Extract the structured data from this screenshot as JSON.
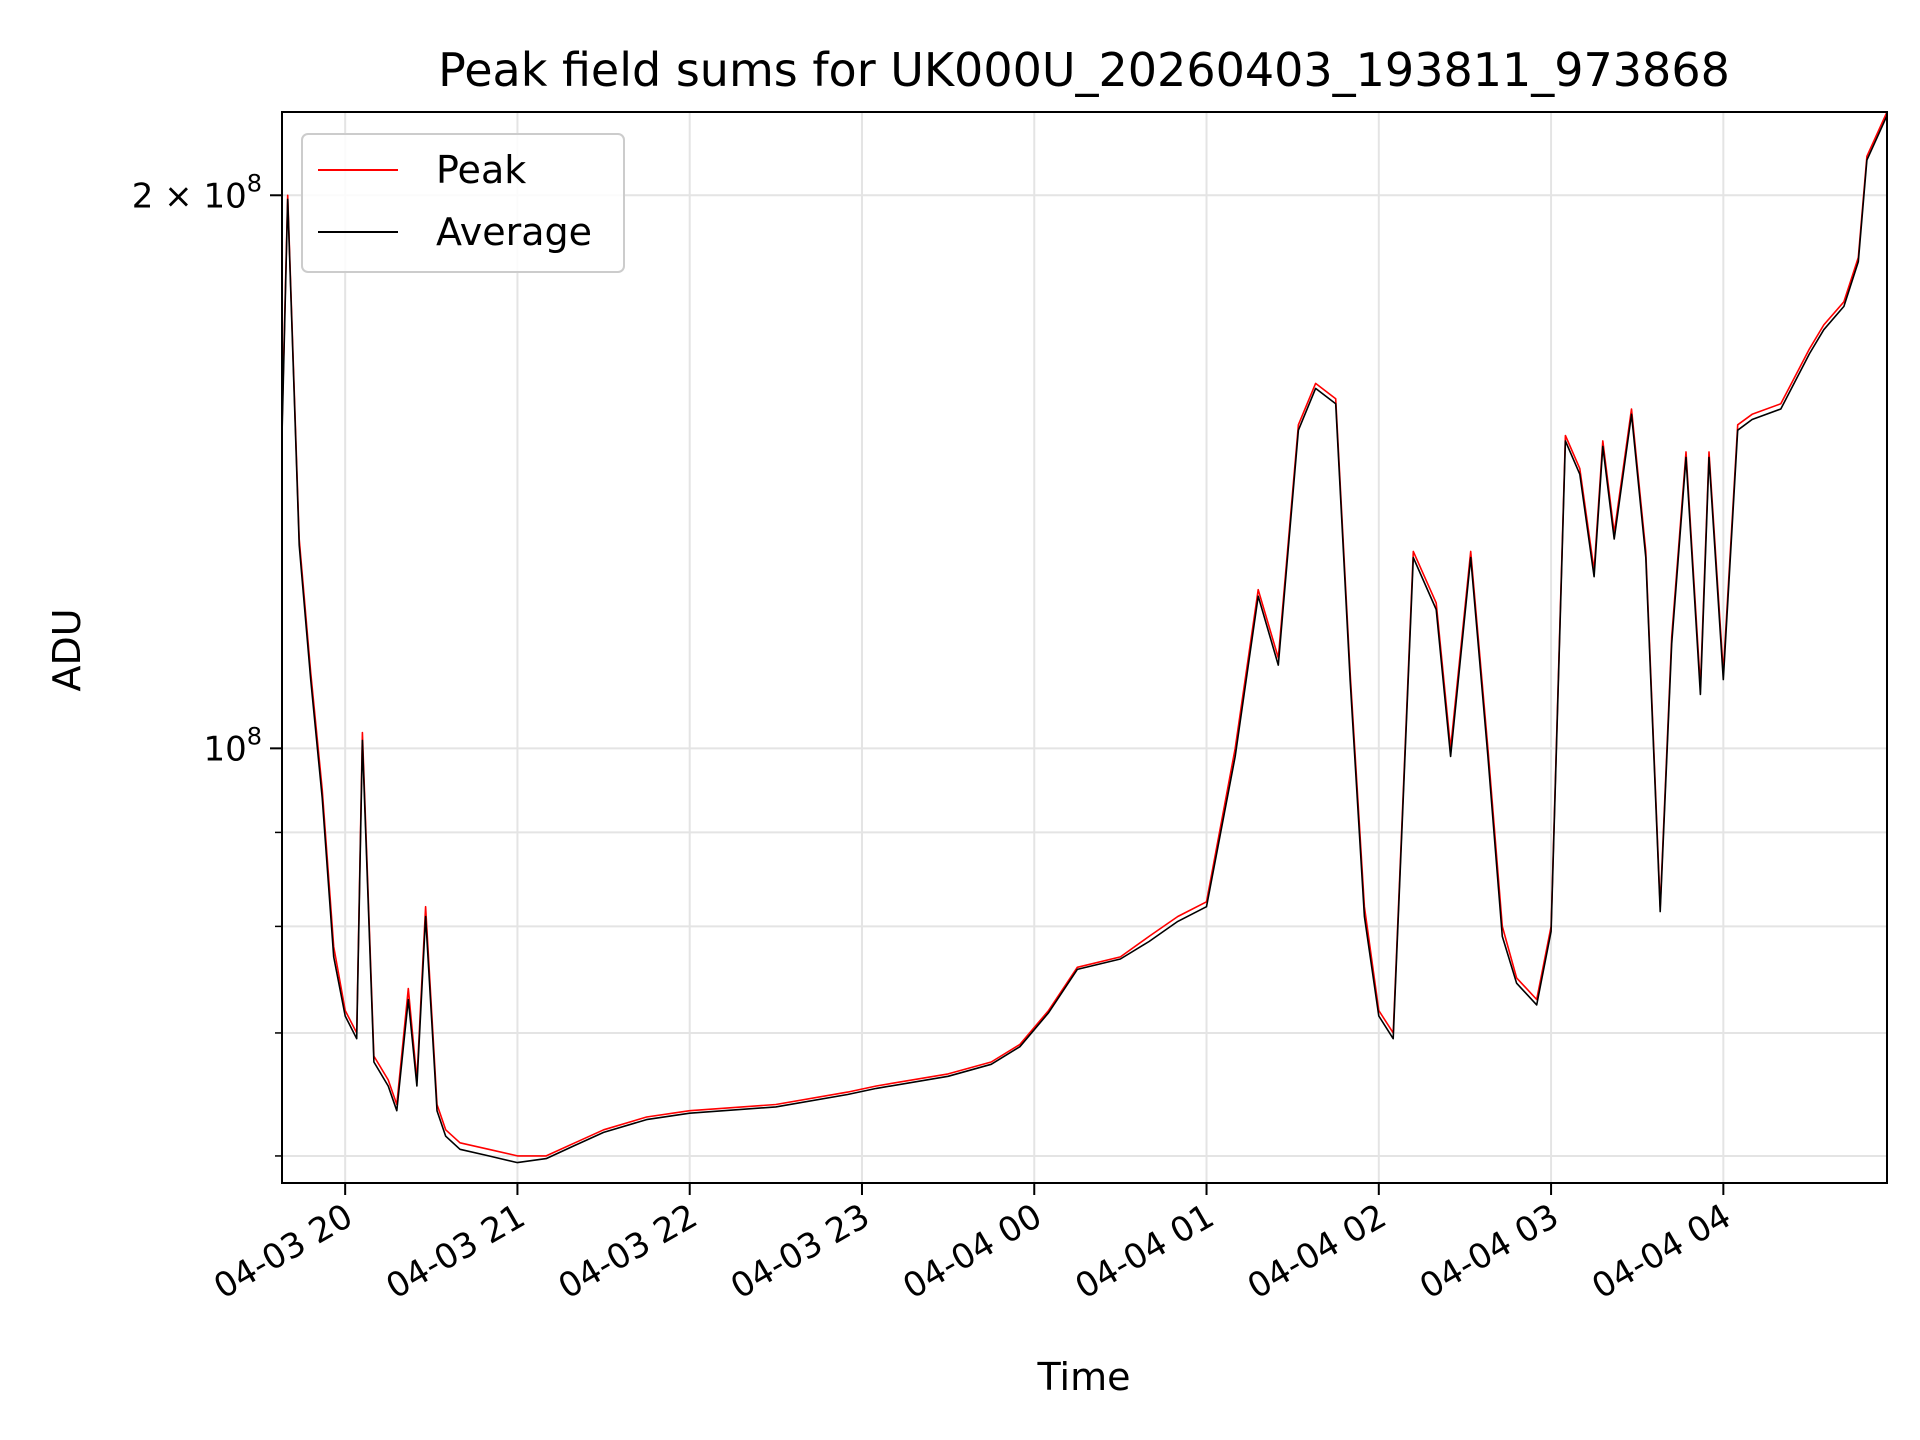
{
  "chart_data": {
    "type": "line",
    "title": "Peak field sums for UK000U_20260403_193811_973868",
    "xlabel": "Time",
    "ylabel": "ADU",
    "y_scale": "log",
    "ylim": [
      58000000,
      222000000
    ],
    "xlim": [
      "04-03 19:38",
      "04-04 04:57"
    ],
    "x_ticks": [
      "04-03 20",
      "04-03 21",
      "04-03 22",
      "04-03 23",
      "04-04 00",
      "04-04 01",
      "04-04 02",
      "04-04 03",
      "04-04 04"
    ],
    "y_ticks": [
      {
        "value": 100000000,
        "label": "10^8"
      },
      {
        "value": 200000000,
        "label": "2 × 10^8"
      }
    ],
    "grid": true,
    "legend": "top-left",
    "x": [
      "04-03 19:38",
      "04-03 19:40",
      "04-03 19:44",
      "04-03 19:48",
      "04-03 19:52",
      "04-03 19:56",
      "04-03 20:00",
      "04-03 20:04",
      "04-03 20:06",
      "04-03 20:10",
      "04-03 20:15",
      "04-03 20:18",
      "04-03 20:22",
      "04-03 20:25",
      "04-03 20:28",
      "04-03 20:32",
      "04-03 20:35",
      "04-03 20:40",
      "04-03 20:50",
      "04-03 21:00",
      "04-03 21:10",
      "04-03 21:20",
      "04-03 21:30",
      "04-03 21:45",
      "04-03 22:00",
      "04-03 22:30",
      "04-03 22:55",
      "04-03 23:05",
      "04-03 23:30",
      "04-03 23:45",
      "04-03 23:55",
      "04-04 00:05",
      "04-04 00:15",
      "04-04 00:30",
      "04-04 00:40",
      "04-04 00:45",
      "04-04 00:50",
      "04-04 01:00",
      "04-04 01:10",
      "04-04 01:18",
      "04-04 01:25",
      "04-04 01:32",
      "04-04 01:38",
      "04-04 01:45",
      "04-04 01:50",
      "04-04 01:55",
      "04-04 02:00",
      "04-04 02:05",
      "04-04 02:12",
      "04-04 02:20",
      "04-04 02:25",
      "04-04 02:32",
      "04-04 02:38",
      "04-04 02:43",
      "04-04 02:48",
      "04-04 02:55",
      "04-04 03:00",
      "04-04 03:05",
      "04-04 03:10",
      "04-04 03:15",
      "04-04 03:18",
      "04-04 03:22",
      "04-04 03:28",
      "04-04 03:33",
      "04-04 03:38",
      "04-04 03:42",
      "04-04 03:47",
      "04-04 03:52",
      "04-04 03:55",
      "04-04 04:00",
      "04-04 04:05",
      "04-04 04:10",
      "04-04 04:20",
      "04-04 04:30",
      "04-04 04:35",
      "04-04 04:42",
      "04-04 04:47",
      "04-04 04:50",
      "04-04 04:57"
    ],
    "series": [
      {
        "name": "Peak",
        "color": "#ff0000",
        "values": [
          150000000,
          200000000,
          130000000,
          110000000,
          95000000,
          78000000,
          72000000,
          70000000,
          102000000,
          68000000,
          66000000,
          64000000,
          74000000,
          66000000,
          82000000,
          64000000,
          62000000,
          61000000,
          60500000,
          60000000,
          60000000,
          61000000,
          62000000,
          63000000,
          63500000,
          64000000,
          65000000,
          65500000,
          66500000,
          67500000,
          69000000,
          72000000,
          76000000,
          77000000,
          79000000,
          80000000,
          81000000,
          82500000,
          100000000,
          122000000,
          112000000,
          150000000,
          158000000,
          155000000,
          110000000,
          82000000,
          72000000,
          70000000,
          128000000,
          120000000,
          100000000,
          128000000,
          100000000,
          80000000,
          75000000,
          73000000,
          80000000,
          148000000,
          142000000,
          125000000,
          147000000,
          131000000,
          153000000,
          128000000,
          82000000,
          115000000,
          145000000,
          108000000,
          145000000,
          110000000,
          150000000,
          152000000,
          154000000,
          165000000,
          170000000,
          175000000,
          185000000,
          210000000,
          222000000
        ]
      },
      {
        "name": "Average",
        "color": "#000000",
        "values": [
          148000000,
          199000000,
          129000000,
          109000000,
          94000000,
          77000000,
          71500000,
          69500000,
          101000000,
          67500000,
          65500000,
          63500000,
          73000000,
          65500000,
          81000000,
          63500000,
          61500000,
          60500000,
          60000000,
          59500000,
          59800000,
          60800000,
          61800000,
          62800000,
          63300000,
          63800000,
          64800000,
          65300000,
          66300000,
          67300000,
          68800000,
          71800000,
          75800000,
          76800000,
          78500000,
          79500000,
          80500000,
          82000000,
          99000000,
          121000000,
          111000000,
          149000000,
          157000000,
          154000000,
          109000000,
          81000000,
          71500000,
          69500000,
          127000000,
          119000000,
          99000000,
          127000000,
          99000000,
          79000000,
          74500000,
          72500000,
          79500000,
          147000000,
          141000000,
          124000000,
          146000000,
          130000000,
          152000000,
          127000000,
          81500000,
          114000000,
          144000000,
          107000000,
          144000000,
          109000000,
          149000000,
          151000000,
          153000000,
          164000000,
          169000000,
          174000000,
          184000000,
          209000000,
          221000000
        ]
      }
    ]
  }
}
